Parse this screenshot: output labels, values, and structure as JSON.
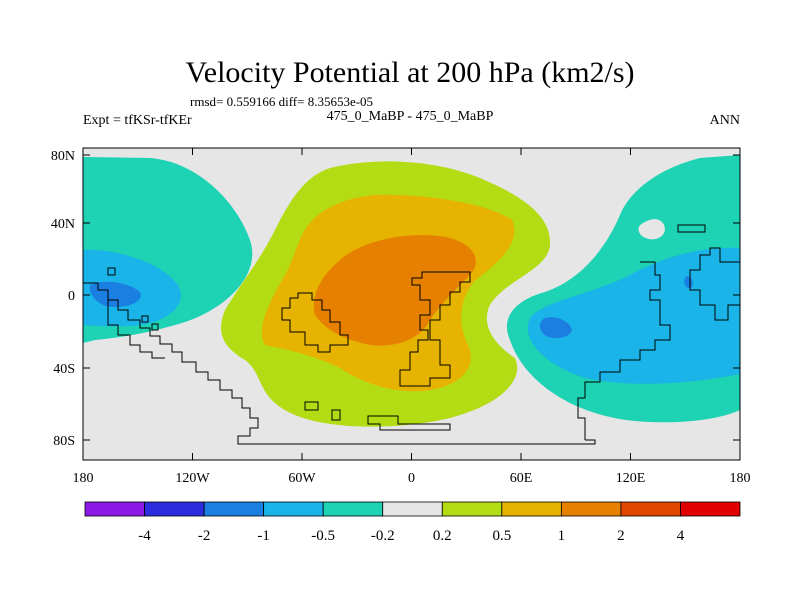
{
  "chart_data": {
    "type": "heatmap",
    "title": "Velocity Potential at 200 hPa (km2/s)",
    "subtitle": "rmsd= 0.559166 diff= 8.35653e-05",
    "left_label": "Expt = tfKSr-tfKEr",
    "center_label": "475_0_MaBP - 475_0_MaBP",
    "right_label": "ANN",
    "x_ticks": [
      "180",
      "120W",
      "60W",
      "0",
      "60E",
      "120E",
      "180"
    ],
    "y_ticks": [
      "80N",
      "40N",
      "0",
      "40S",
      "80S"
    ],
    "lon_range": [
      -180,
      180
    ],
    "lat_range": [
      -90,
      90
    ],
    "colorbar": {
      "labels": [
        "-4",
        "-2",
        "-1",
        "-0.5",
        "-0.2",
        "0.2",
        "0.5",
        "1",
        "2",
        "4"
      ],
      "colors": [
        "#8c19e6",
        "#2d2de0",
        "#1a7fe0",
        "#1ab4e8",
        "#1ed2b4",
        "#e6e6e6",
        "#b4dc14",
        "#e6b400",
        "#e68000",
        "#e04600",
        "#e00000"
      ]
    },
    "regions": [
      {
        "name": "positive-max-atlantic",
        "lon": -30,
        "lat": 10,
        "level": "1 to 2"
      },
      {
        "name": "negative-min-indian-ocean",
        "lon": 80,
        "lat": -20,
        "level": "-1 to -2"
      },
      {
        "name": "negative-min-central-pacific",
        "lon": -165,
        "lat": 0,
        "level": "-1 to -2"
      }
    ]
  }
}
